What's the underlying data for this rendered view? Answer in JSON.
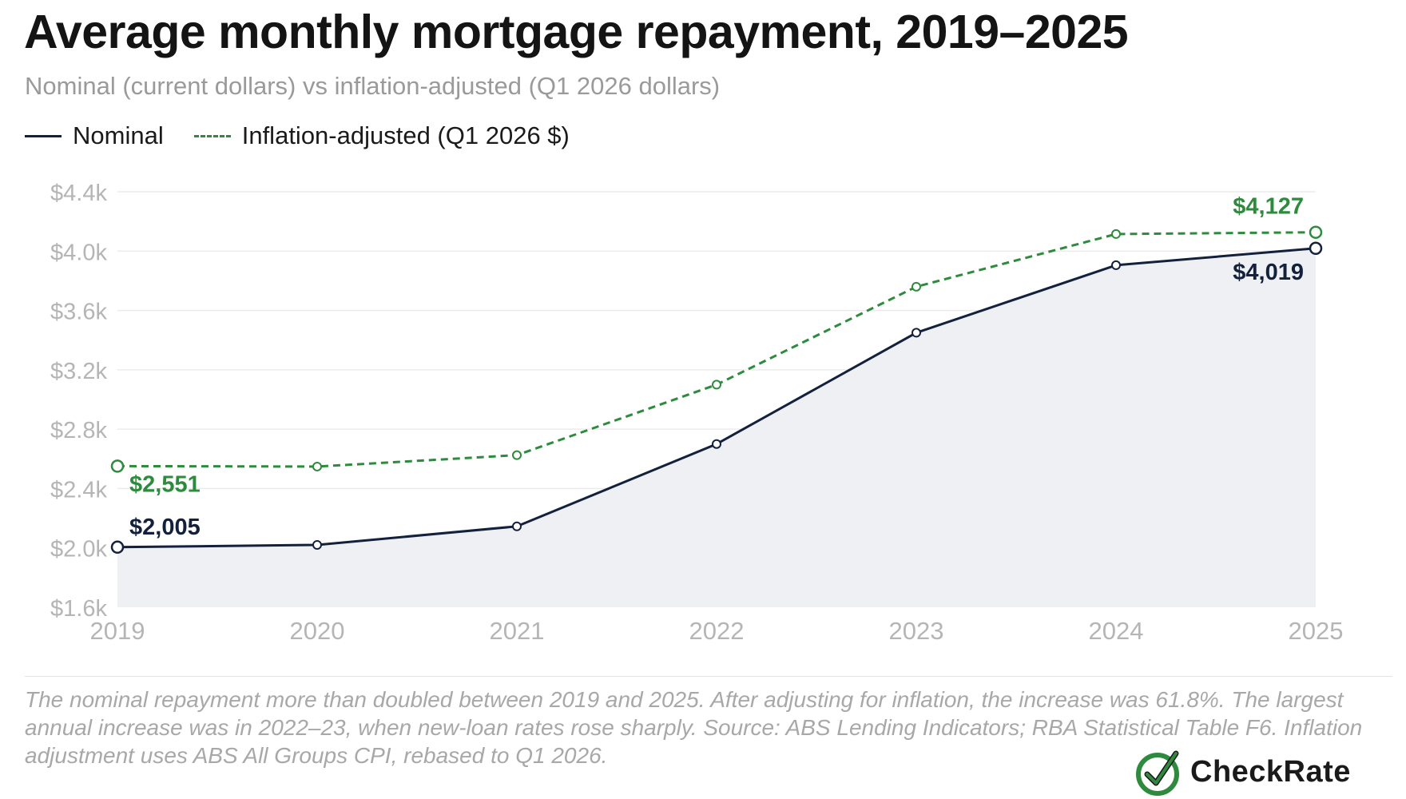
{
  "header": {
    "title": "Average monthly mortgage repayment, 2019–2025",
    "subtitle": "Nominal (current dollars) vs inflation-adjusted (Q1 2026 dollars)"
  },
  "legend": {
    "nominal": "Nominal",
    "adjusted": "Inflation-adjusted (Q1 2026 $)"
  },
  "colors": {
    "nominal": "#14213d",
    "adjusted": "#2e8b3e",
    "area": "#eff0f3",
    "grid": "#ececec",
    "tick": "#b5b5b5"
  },
  "chart_data": {
    "type": "line",
    "x": [
      2019,
      2020,
      2021,
      2022,
      2023,
      2024,
      2025
    ],
    "series": [
      {
        "name": "Nominal",
        "values": [
          2005,
          2020,
          2145,
          2700,
          3450,
          3905,
          4019
        ],
        "fill_area": true
      },
      {
        "name": "Inflation-adjusted (Q1 2026 $)",
        "values": [
          2551,
          2548,
          2625,
          3100,
          3760,
          4115,
          4127
        ],
        "style": "dashed"
      }
    ],
    "ylim": [
      1600,
      4400
    ],
    "yticks": [
      1600,
      2000,
      2400,
      2800,
      3200,
      3600,
      4000,
      4400
    ],
    "ytick_labels": [
      "$1.6k",
      "$2.0k",
      "$2.4k",
      "$2.8k",
      "$3.2k",
      "$3.6k",
      "$4.0k",
      "$4.4k"
    ],
    "xtick_labels": [
      "2019",
      "2020",
      "2021",
      "2022",
      "2023",
      "2024",
      "2025"
    ],
    "grid": true,
    "legend": "top-left",
    "annotations": [
      {
        "series": 0,
        "index": 0,
        "text": "$2,005"
      },
      {
        "series": 1,
        "index": 0,
        "text": "$2,551"
      },
      {
        "series": 0,
        "index": 6,
        "text": "$4,019"
      },
      {
        "series": 1,
        "index": 6,
        "text": "$4,127"
      }
    ]
  },
  "footnote": "The nominal repayment more than doubled between 2019 and 2025. After adjusting for inflation, the increase was 61.8%. The largest annual increase was in 2022–23, when new-loan rates rose sharply. Source: ABS Lending Indicators; RBA Statistical Table F6. Inflation adjustment uses ABS All Groups CPI, rebased to Q1 2026.",
  "logo": {
    "text": "CheckRate",
    "icon": "checkmark-circle-icon"
  }
}
